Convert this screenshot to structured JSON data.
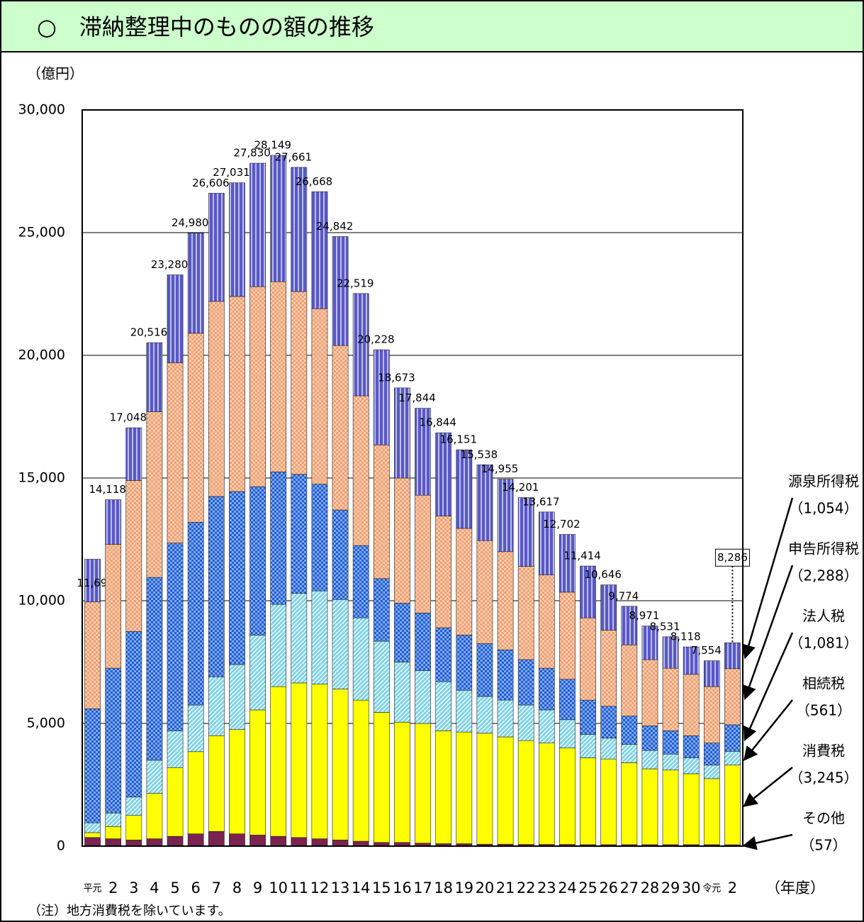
{
  "chart_data": {
    "type": "stacked-bar",
    "title": "○　滞納整理中のものの額の推移",
    "y_label": "（億円）",
    "x_label": "（年度）",
    "note": "（注）地方消費税を除いています。",
    "categories": [
      "平元",
      "2",
      "3",
      "4",
      "5",
      "6",
      "7",
      "8",
      "9",
      "10",
      "11",
      "12",
      "13",
      "14",
      "15",
      "16",
      "17",
      "18",
      "19",
      "20",
      "21",
      "22",
      "23",
      "24",
      "25",
      "26",
      "27",
      "28",
      "29",
      "30",
      "令元",
      "2"
    ],
    "ylim": [
      0,
      30000
    ],
    "yticks": [
      0,
      {
        "value": 5000,
        "label": "5,000"
      },
      {
        "value": 10000,
        "label": "10,000"
      },
      {
        "value": 15000,
        "label": "15,000"
      },
      {
        "value": 20000,
        "label": "20,000"
      },
      {
        "value": 25000,
        "label": "25,000"
      },
      {
        "value": 30000,
        "label": "30,000"
      }
    ],
    "grid": true,
    "series": [
      {
        "name": "その他",
        "color": "#7b2350",
        "annotation": "（57）",
        "values": [
          350,
          300,
          250,
          300,
          400,
          500,
          600,
          500,
          450,
          400,
          350,
          300,
          250,
          200,
          150,
          150,
          120,
          100,
          100,
          80,
          80,
          70,
          70,
          70,
          60,
          60,
          60,
          60,
          60,
          60,
          60,
          57
        ]
      },
      {
        "name": "消費税",
        "color": "#ffff00",
        "annotation": "（3,245）",
        "values": [
          200,
          500,
          1000,
          1850,
          2800,
          3350,
          3900,
          4250,
          5100,
          6100,
          6300,
          6300,
          6150,
          5750,
          5300,
          4900,
          4880,
          4600,
          4550,
          4520,
          4370,
          4230,
          4130,
          3930,
          3540,
          3490,
          3340,
          3090,
          3040,
          2890,
          2690,
          3245
        ]
      },
      {
        "name": "相続税",
        "color": "#7fd3e6",
        "annotation": "（561）",
        "values": [
          400,
          550,
          750,
          1350,
          1500,
          1900,
          2400,
          2650,
          3050,
          3350,
          3650,
          3800,
          3650,
          3350,
          2900,
          2450,
          2150,
          2000,
          1700,
          1500,
          1500,
          1450,
          1350,
          1150,
          950,
          850,
          750,
          750,
          650,
          650,
          550,
          561
        ]
      },
      {
        "name": "法人税",
        "color": "#1e5fd8",
        "annotation": "（1,081）",
        "values": [
          4650,
          5900,
          6750,
          7450,
          7650,
          7450,
          7350,
          7050,
          6050,
          5400,
          4850,
          4350,
          3650,
          2950,
          2550,
          2400,
          2350,
          2200,
          2250,
          2150,
          2050,
          1850,
          1700,
          1650,
          1400,
          1300,
          1150,
          1000,
          950,
          900,
          900,
          1081
        ]
      },
      {
        "name": "申告所得税",
        "color": "#f0a070",
        "annotation": "（2,288）",
        "values": [
          4350,
          5050,
          6150,
          6750,
          7350,
          7700,
          7950,
          7950,
          8150,
          7750,
          7450,
          7150,
          6700,
          6100,
          5450,
          5100,
          4800,
          4550,
          4350,
          4200,
          4000,
          3800,
          3800,
          3550,
          3350,
          3100,
          2900,
          2700,
          2550,
          2500,
          2300,
          2288
        ]
      },
      {
        "name": "源泉所得税",
        "color": "#5858c8",
        "annotation": "（1,054）",
        "values": [
          1741,
          1818,
          2148,
          2816,
          3580,
          4080,
          4406,
          4631,
          5030,
          5149,
          5061,
          4768,
          4442,
          4169,
          3878,
          3673,
          3544,
          3394,
          3201,
          3088,
          2955,
          2801,
          2567,
          2352,
          2114,
          1846,
          1574,
          1371,
          1281,
          1118,
          1054,
          1054
        ]
      }
    ],
    "totals": [
      11691,
      14118,
      17048,
      20516,
      23280,
      24980,
      26606,
      27031,
      27830,
      28149,
      27661,
      26668,
      24842,
      22519,
      20228,
      18673,
      17844,
      16844,
      16151,
      15538,
      14955,
      14201,
      13617,
      12702,
      11414,
      10646,
      9774,
      8971,
      8531,
      8118,
      7554,
      8286
    ],
    "total_labels": [
      "11,691",
      "14,118",
      "17,048",
      "20,516",
      "23,280",
      "24,980",
      "26,606",
      "27,031",
      "27,830",
      "28,149",
      "27,661",
      "26,668",
      "24,842",
      "22,519",
      "20,228",
      "18,673",
      "17,844",
      "16,844",
      "16,151",
      "15,538",
      "14,955",
      "14,201",
      "13,617",
      "12,702",
      "11,414",
      "10,646",
      "9,774",
      "8,971",
      "8,531",
      "8,118",
      "7,554",
      "8,286"
    ]
  }
}
